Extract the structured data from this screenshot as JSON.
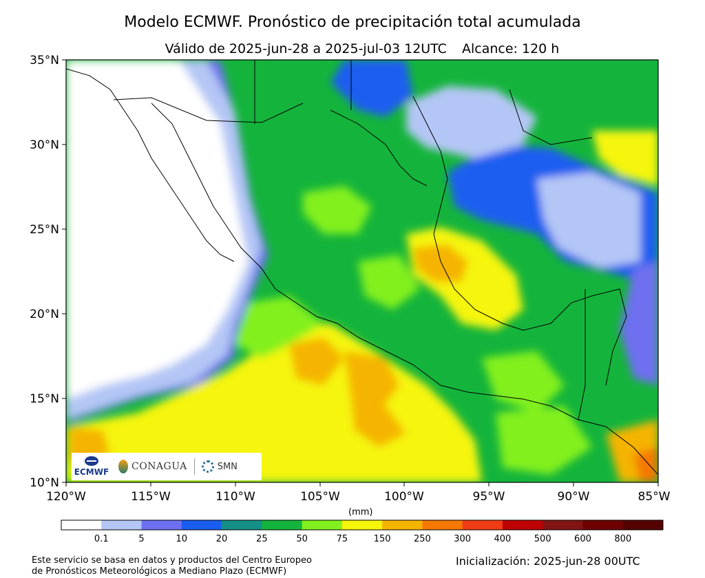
{
  "title": "Modelo ECMWF. Pronóstico de precipitación total acumulada",
  "subtitle": {
    "valid": "Válido de 2025-jun-28 a 2025-jul-03 12UTC",
    "range": "Alcance: 120 h"
  },
  "axes": {
    "lon_labels": [
      "120°W",
      "115°W",
      "110°W",
      "105°W",
      "100°W",
      "95°W",
      "90°W",
      "85°W"
    ],
    "lat_labels": [
      "35°N",
      "30°N",
      "25°N",
      "20°N",
      "15°N",
      "10°N"
    ]
  },
  "colorbar": {
    "unit": "(mm)",
    "labels": [
      "0.1",
      "5",
      "10",
      "20",
      "25",
      "50",
      "75",
      "150",
      "250",
      "300",
      "400",
      "500",
      "600",
      "800"
    ],
    "colors": [
      "#ffffff",
      "#b4c6f5",
      "#6e70f0",
      "#1a5ef0",
      "#149088",
      "#14b43c",
      "#82f01e",
      "#f5f50a",
      "#f5b400",
      "#f57800",
      "#f03c14",
      "#be0000",
      "#821414",
      "#6e0000",
      "#550000"
    ]
  },
  "logos": {
    "ecmwf": "ECMWF",
    "conagua": "CONAGUA",
    "smn": "SMN"
  },
  "footer": {
    "credit_line1": "Este servicio se basa en datos y productos del Centro Europeo",
    "credit_line2": "de Pronósticos Meteorológicos a Mediano Plazo (ECMWF)",
    "init": "Inicialización: 2025-jun-28 00UTC"
  }
}
